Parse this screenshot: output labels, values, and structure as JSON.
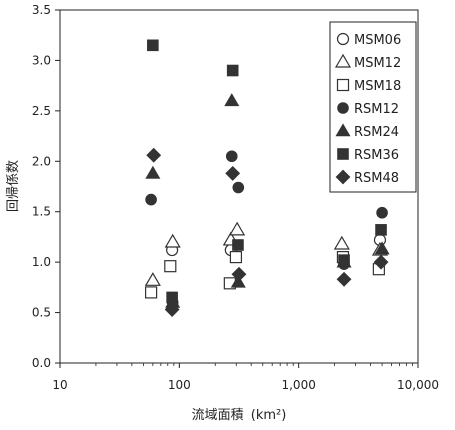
{
  "chart_data": {
    "type": "scatter",
    "title": "",
    "xlabel": "流域面積",
    "xlabel_unit": "(km²)",
    "ylabel": "回帰係数",
    "xscale": "log",
    "xlim": [
      10,
      10000
    ],
    "ylim": [
      0.0,
      3.5
    ],
    "x_ticks": [
      10,
      100,
      1000,
      10000
    ],
    "x_tick_labels": [
      "10",
      "100",
      "1,000",
      "10,000"
    ],
    "y_ticks": [
      0.0,
      0.5,
      1.0,
      1.5,
      2.0,
      2.5,
      3.0,
      3.5
    ],
    "y_tick_labels": [
      "0.0",
      "0.5",
      "1.0",
      "1.5",
      "2.0",
      "2.5",
      "3.0",
      "3.5"
    ],
    "grid": false,
    "legend_position": "top-right",
    "series": [
      {
        "name": "MSM06",
        "marker": "circle-open",
        "points": [
          [
            87,
            1.12
          ],
          [
            270,
            1.12
          ],
          [
            4800,
            1.22
          ]
        ]
      },
      {
        "name": "MSM12",
        "marker": "triangle-open",
        "points": [
          [
            60,
            0.82
          ],
          [
            88,
            1.2
          ],
          [
            270,
            1.22
          ],
          [
            305,
            1.32
          ],
          [
            2300,
            1.18
          ],
          [
            4800,
            1.12
          ]
        ]
      },
      {
        "name": "MSM18",
        "marker": "square-open",
        "points": [
          [
            58,
            0.7
          ],
          [
            84,
            0.96
          ],
          [
            265,
            0.79
          ],
          [
            298,
            1.05
          ],
          [
            2350,
            1.05
          ],
          [
            4700,
            0.93
          ]
        ]
      },
      {
        "name": "RSM12",
        "marker": "circle-filled",
        "points": [
          [
            58,
            1.62
          ],
          [
            88,
            0.6
          ],
          [
            275,
            2.05
          ],
          [
            312,
            1.74
          ],
          [
            2400,
            0.98
          ],
          [
            5000,
            1.49
          ]
        ]
      },
      {
        "name": "RSM24",
        "marker": "triangle-filled",
        "points": [
          [
            60,
            1.88
          ],
          [
            88,
            0.6
          ],
          [
            275,
            2.6
          ],
          [
            312,
            0.8
          ],
          [
            2400,
            1.0
          ],
          [
            5000,
            1.13
          ]
        ]
      },
      {
        "name": "RSM36",
        "marker": "square-filled",
        "points": [
          [
            60,
            3.15
          ],
          [
            87,
            0.65
          ],
          [
            280,
            2.9
          ],
          [
            310,
            1.17
          ],
          [
            2400,
            1.02
          ],
          [
            4900,
            1.32
          ]
        ]
      },
      {
        "name": "RSM48",
        "marker": "diamond-filled",
        "points": [
          [
            61,
            2.06
          ],
          [
            87,
            0.53
          ],
          [
            280,
            1.88
          ],
          [
            316,
            0.88
          ],
          [
            2400,
            0.83
          ],
          [
            4900,
            1.0
          ]
        ]
      }
    ]
  }
}
